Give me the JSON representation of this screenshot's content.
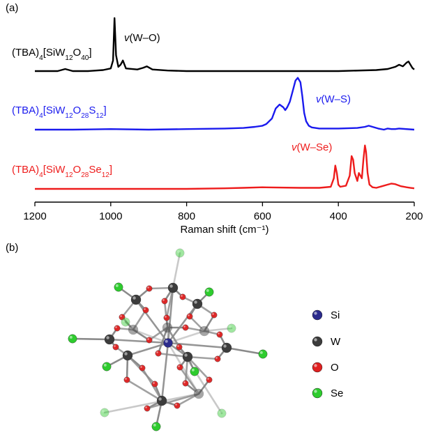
{
  "panel_a_label": "(a)",
  "panel_b_label": "(b)",
  "chart_data": {
    "type": "line",
    "xlabel": "Raman shift (cm⁻¹)",
    "ylabel": "",
    "xlim": [
      1200,
      200
    ],
    "x_reversed": true,
    "x_ticks": [
      1200,
      1000,
      800,
      600,
      400,
      200
    ],
    "y_axis_shown": false,
    "grid": false,
    "series": [
      {
        "name": "(TBA)4[SiW12O40]",
        "name_parts": [
          [
            "(TBA)",
            ""
          ],
          [
            "4",
            "sub"
          ],
          [
            "[SiW",
            ""
          ],
          [
            "12",
            "sub"
          ],
          [
            "O",
            ""
          ],
          [
            "40",
            "sub"
          ],
          [
            "]",
            ""
          ]
        ],
        "color": "#000000",
        "annotation": "v(W–O)",
        "x": [
          1200,
          1140,
          1120,
          1100,
          1060,
          1020,
          1000,
          994,
          990,
          986,
          980,
          974,
          968,
          960,
          930,
          915,
          905,
          890,
          850,
          800,
          700,
          600,
          500,
          400,
          300,
          270,
          250,
          240,
          230,
          220,
          215,
          205,
          200
        ],
        "y": [
          0.0,
          0.0,
          0.04,
          0.0,
          0.0,
          0.02,
          0.05,
          0.2,
          1.0,
          0.3,
          0.08,
          0.12,
          0.2,
          0.05,
          0.03,
          0.06,
          0.09,
          0.03,
          0.01,
          0.0,
          0.0,
          0.0,
          0.0,
          0.0,
          0.02,
          0.04,
          0.08,
          0.12,
          0.09,
          0.16,
          0.18,
          0.06,
          0.03
        ]
      },
      {
        "name": "(TBA)4[SiW12O28S12]",
        "name_parts": [
          [
            "(TBA)",
            ""
          ],
          [
            "4",
            "sub"
          ],
          [
            "[SiW",
            ""
          ],
          [
            "12",
            "sub"
          ],
          [
            "O",
            ""
          ],
          [
            "28",
            "sub"
          ],
          [
            "S",
            ""
          ],
          [
            "12",
            "sub"
          ],
          [
            "]",
            ""
          ]
        ],
        "color": "#1a1aee",
        "annotation": "v(W–S)",
        "x": [
          1200,
          1100,
          1000,
          900,
          800,
          700,
          650,
          620,
          600,
          590,
          575,
          565,
          555,
          545,
          540,
          535,
          528,
          520,
          513,
          507,
          500,
          495,
          490,
          485,
          478,
          470,
          450,
          400,
          350,
          330,
          320,
          310,
          295,
          280,
          270,
          260,
          250,
          240,
          200
        ],
        "y": [
          0.0,
          0.0,
          0.01,
          0.0,
          0.01,
          0.02,
          0.03,
          0.05,
          0.07,
          0.1,
          0.2,
          0.38,
          0.45,
          0.4,
          0.35,
          0.4,
          0.5,
          0.7,
          0.88,
          0.93,
          0.85,
          0.6,
          0.3,
          0.15,
          0.07,
          0.04,
          0.02,
          0.02,
          0.03,
          0.05,
          0.07,
          0.05,
          0.02,
          0.0,
          0.02,
          0.01,
          0.01,
          0.02,
          0.0
        ]
      },
      {
        "name": "(TBA)4[SiW12O28Se12]",
        "name_parts": [
          [
            "(TBA)",
            ""
          ],
          [
            "4",
            "sub"
          ],
          [
            "[SiW",
            ""
          ],
          [
            "12",
            "sub"
          ],
          [
            "O",
            ""
          ],
          [
            "28",
            "sub"
          ],
          [
            "Se",
            ""
          ],
          [
            "12",
            "sub"
          ],
          [
            "]",
            ""
          ]
        ],
        "color": "#ee1c1c",
        "annotation": "v(W–Se)",
        "x": [
          1200,
          1100,
          1000,
          900,
          800,
          700,
          650,
          600,
          500,
          450,
          420,
          412,
          408,
          404,
          400,
          395,
          380,
          370,
          365,
          361,
          357,
          350,
          346,
          342,
          338,
          334,
          330,
          327,
          323,
          318,
          310,
          300,
          285,
          270,
          260,
          250,
          235,
          220,
          210,
          200
        ],
        "y": [
          0.0,
          0.0,
          0.0,
          0.0,
          0.0,
          0.01,
          0.02,
          0.03,
          0.02,
          0.02,
          0.04,
          0.2,
          0.44,
          0.3,
          0.08,
          0.04,
          0.06,
          0.25,
          0.62,
          0.55,
          0.3,
          0.15,
          0.3,
          0.25,
          0.2,
          0.55,
          0.82,
          0.7,
          0.3,
          0.08,
          0.03,
          0.02,
          0.05,
          0.08,
          0.1,
          0.09,
          0.05,
          0.03,
          0.02,
          0.01
        ]
      }
    ]
  },
  "legend_b": [
    {
      "label": "Si",
      "color": "#2b2b8c"
    },
    {
      "label": "W",
      "color": "#3c3c3c"
    },
    {
      "label": "O",
      "color": "#e02020"
    },
    {
      "label": "Se",
      "color": "#2ecc2e"
    }
  ]
}
